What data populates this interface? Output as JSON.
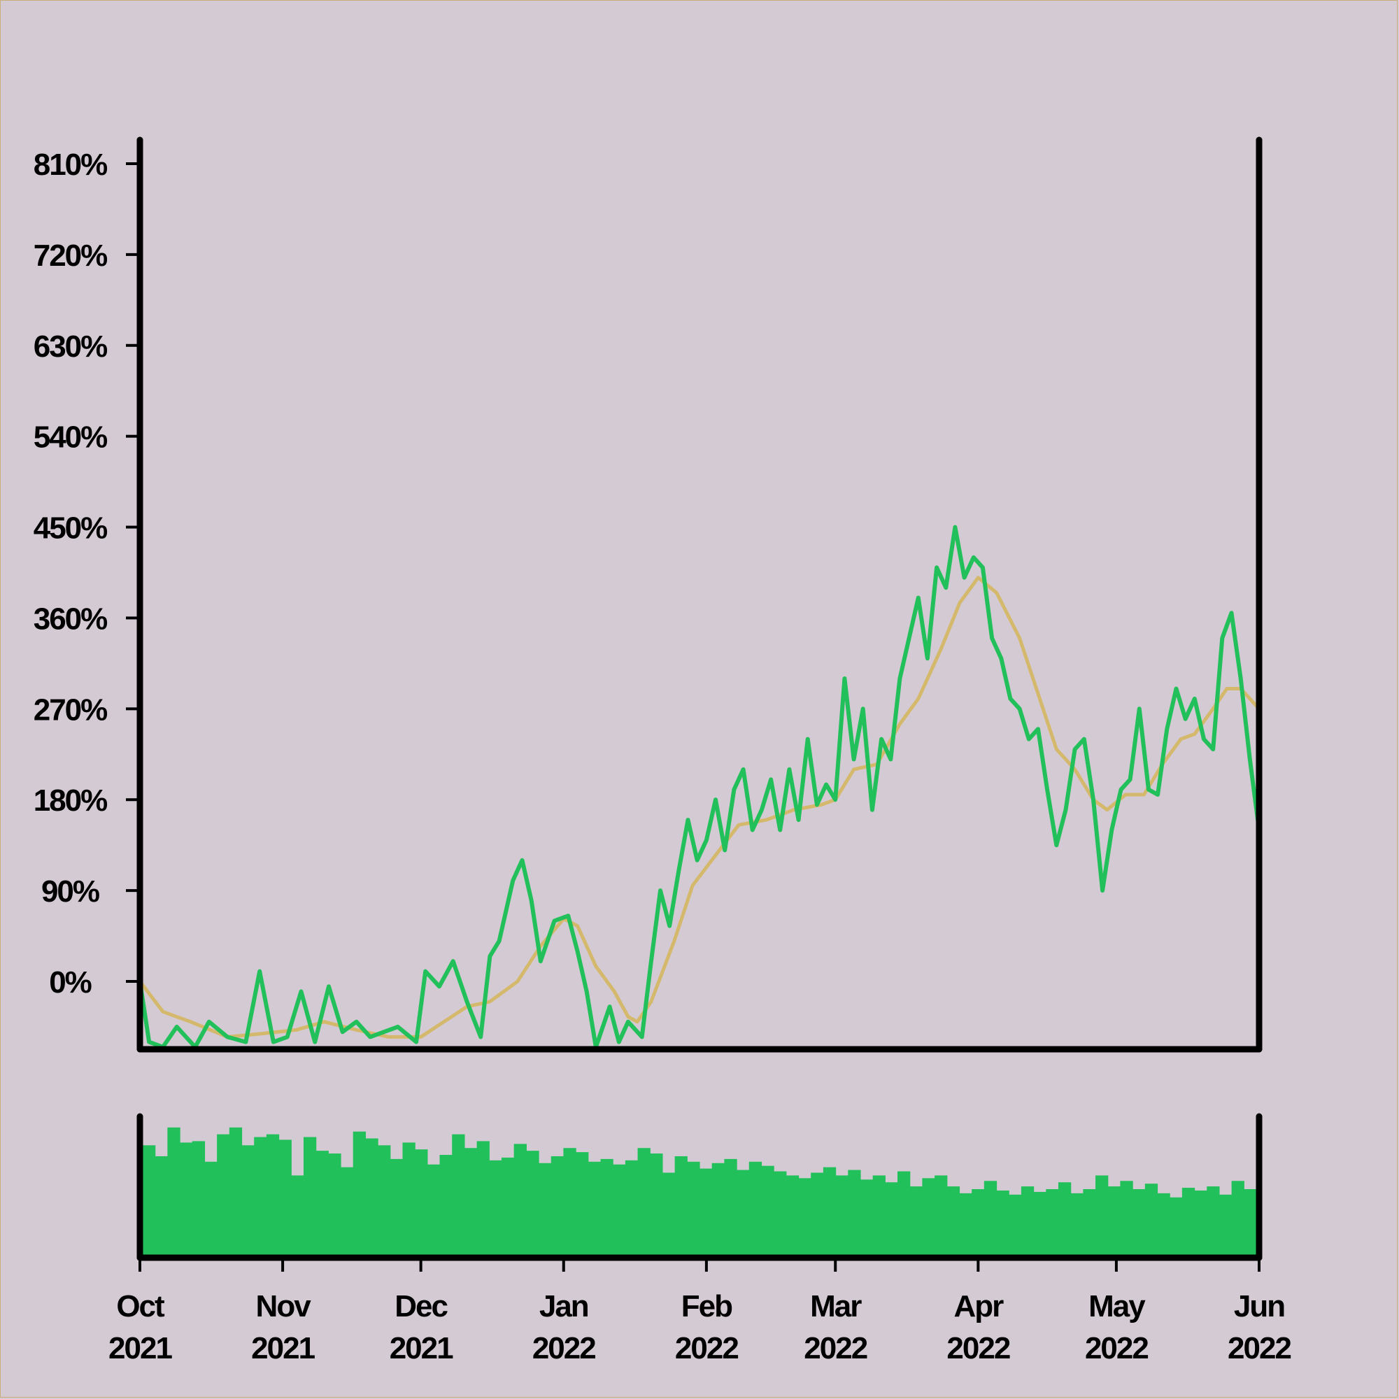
{
  "chart_data": [
    {
      "type": "line",
      "title": "",
      "xlabel": "",
      "ylabel": "",
      "y_unit": "%",
      "yticks": [
        0,
        90,
        180,
        270,
        360,
        450,
        540,
        630,
        720,
        810
      ],
      "ytick_labels": [
        "0%",
        "90%",
        "180%",
        "270%",
        "360%",
        "450%",
        "540%",
        "630%",
        "720%",
        "810%"
      ],
      "ylim": [
        -65,
        810
      ],
      "xlim": [
        "2021-10-01",
        "2022-06-01"
      ],
      "xtick_labels": [
        {
          "month": "Oct",
          "year": "2021"
        },
        {
          "month": "Nov",
          "year": "2021"
        },
        {
          "month": "Dec",
          "year": "2021"
        },
        {
          "month": "Jan",
          "year": "2022"
        },
        {
          "month": "Feb",
          "year": "2022"
        },
        {
          "month": "Mar",
          "year": "2022"
        },
        {
          "month": "Apr",
          "year": "2022"
        },
        {
          "month": "May",
          "year": "2022"
        },
        {
          "month": "Jun",
          "year": "2022"
        }
      ],
      "grid": false,
      "legend": "none",
      "series": [
        {
          "role": "price",
          "color": "#22c05a",
          "points": [
            [
              "2021-10-01",
              0
            ],
            [
              "2021-10-03",
              -60
            ],
            [
              "2021-10-06",
              -65
            ],
            [
              "2021-10-09",
              -45
            ],
            [
              "2021-10-13",
              -65
            ],
            [
              "2021-10-16",
              -40
            ],
            [
              "2021-10-20",
              -55
            ],
            [
              "2021-10-24",
              -60
            ],
            [
              "2021-10-27",
              10
            ],
            [
              "2021-10-30",
              -60
            ],
            [
              "2021-11-02",
              -55
            ],
            [
              "2021-11-05",
              -10
            ],
            [
              "2021-11-08",
              -60
            ],
            [
              "2021-11-11",
              -5
            ],
            [
              "2021-11-14",
              -50
            ],
            [
              "2021-11-17",
              -40
            ],
            [
              "2021-11-20",
              -55
            ],
            [
              "2021-11-23",
              -50
            ],
            [
              "2021-11-26",
              -45
            ],
            [
              "2021-11-30",
              -60
            ],
            [
              "2021-12-02",
              10
            ],
            [
              "2021-12-05",
              -5
            ],
            [
              "2021-12-08",
              20
            ],
            [
              "2021-12-11",
              -20
            ],
            [
              "2021-12-14",
              -55
            ],
            [
              "2021-12-16",
              25
            ],
            [
              "2021-12-18",
              40
            ],
            [
              "2021-12-21",
              100
            ],
            [
              "2021-12-23",
              120
            ],
            [
              "2021-12-25",
              80
            ],
            [
              "2021-12-27",
              20
            ],
            [
              "2021-12-30",
              60
            ],
            [
              "2022-01-02",
              65
            ],
            [
              "2022-01-04",
              30
            ],
            [
              "2022-01-06",
              -10
            ],
            [
              "2022-01-08",
              -65
            ],
            [
              "2022-01-11",
              -25
            ],
            [
              "2022-01-13",
              -60
            ],
            [
              "2022-01-15",
              -40
            ],
            [
              "2022-01-18",
              -55
            ],
            [
              "2022-01-20",
              20
            ],
            [
              "2022-01-22",
              90
            ],
            [
              "2022-01-24",
              55
            ],
            [
              "2022-01-26",
              110
            ],
            [
              "2022-01-28",
              160
            ],
            [
              "2022-01-30",
              120
            ],
            [
              "2022-02-01",
              140
            ],
            [
              "2022-02-03",
              180
            ],
            [
              "2022-02-05",
              130
            ],
            [
              "2022-02-07",
              190
            ],
            [
              "2022-02-09",
              210
            ],
            [
              "2022-02-11",
              150
            ],
            [
              "2022-02-13",
              170
            ],
            [
              "2022-02-15",
              200
            ],
            [
              "2022-02-17",
              150
            ],
            [
              "2022-02-19",
              210
            ],
            [
              "2022-02-21",
              160
            ],
            [
              "2022-02-23",
              240
            ],
            [
              "2022-02-25",
              175
            ],
            [
              "2022-02-27",
              195
            ],
            [
              "2022-03-01",
              180
            ],
            [
              "2022-03-03",
              300
            ],
            [
              "2022-03-05",
              220
            ],
            [
              "2022-03-07",
              270
            ],
            [
              "2022-03-09",
              170
            ],
            [
              "2022-03-11",
              240
            ],
            [
              "2022-03-13",
              220
            ],
            [
              "2022-03-15",
              300
            ],
            [
              "2022-03-17",
              340
            ],
            [
              "2022-03-19",
              380
            ],
            [
              "2022-03-21",
              320
            ],
            [
              "2022-03-23",
              410
            ],
            [
              "2022-03-25",
              390
            ],
            [
              "2022-03-27",
              450
            ],
            [
              "2022-03-29",
              400
            ],
            [
              "2022-03-31",
              420
            ],
            [
              "2022-04-02",
              410
            ],
            [
              "2022-04-04",
              340
            ],
            [
              "2022-04-06",
              320
            ],
            [
              "2022-04-08",
              280
            ],
            [
              "2022-04-10",
              270
            ],
            [
              "2022-04-12",
              240
            ],
            [
              "2022-04-14",
              250
            ],
            [
              "2022-04-16",
              190
            ],
            [
              "2022-04-18",
              135
            ],
            [
              "2022-04-20",
              170
            ],
            [
              "2022-04-22",
              230
            ],
            [
              "2022-04-24",
              240
            ],
            [
              "2022-04-26",
              180
            ],
            [
              "2022-04-28",
              90
            ],
            [
              "2022-04-30",
              150
            ],
            [
              "2022-05-02",
              190
            ],
            [
              "2022-05-04",
              200
            ],
            [
              "2022-05-06",
              270
            ],
            [
              "2022-05-08",
              190
            ],
            [
              "2022-05-10",
              185
            ],
            [
              "2022-05-12",
              250
            ],
            [
              "2022-05-14",
              290
            ],
            [
              "2022-05-16",
              260
            ],
            [
              "2022-05-18",
              280
            ],
            [
              "2022-05-20",
              240
            ],
            [
              "2022-05-22",
              230
            ],
            [
              "2022-05-24",
              340
            ],
            [
              "2022-05-26",
              365
            ],
            [
              "2022-05-28",
              300
            ],
            [
              "2022-05-30",
              220
            ],
            [
              "2022-06-01",
              150
            ]
          ]
        },
        {
          "role": "moving-average",
          "color": "#d4b96c",
          "points": [
            [
              "2021-10-01",
              0
            ],
            [
              "2021-10-06",
              -30
            ],
            [
              "2021-10-12",
              -40
            ],
            [
              "2021-10-20",
              -55
            ],
            [
              "2021-10-27",
              -52
            ],
            [
              "2021-11-04",
              -48
            ],
            [
              "2021-11-10",
              -40
            ],
            [
              "2021-11-17",
              -48
            ],
            [
              "2021-11-24",
              -55
            ],
            [
              "2021-12-01",
              -55
            ],
            [
              "2021-12-06",
              -40
            ],
            [
              "2021-12-11",
              -25
            ],
            [
              "2021-12-16",
              -20
            ],
            [
              "2021-12-22",
              0
            ],
            [
              "2021-12-27",
              35
            ],
            [
              "2022-01-01",
              62
            ],
            [
              "2022-01-04",
              55
            ],
            [
              "2022-01-08",
              15
            ],
            [
              "2022-01-12",
              -10
            ],
            [
              "2022-01-15",
              -35
            ],
            [
              "2022-01-17",
              -40
            ],
            [
              "2022-01-20",
              -20
            ],
            [
              "2022-01-25",
              40
            ],
            [
              "2022-01-29",
              95
            ],
            [
              "2022-02-03",
              125
            ],
            [
              "2022-02-08",
              155
            ],
            [
              "2022-02-14",
              160
            ],
            [
              "2022-02-20",
              170
            ],
            [
              "2022-02-26",
              175
            ],
            [
              "2022-03-01",
              180
            ],
            [
              "2022-03-05",
              210
            ],
            [
              "2022-03-10",
              215
            ],
            [
              "2022-03-15",
              255
            ],
            [
              "2022-03-19",
              280
            ],
            [
              "2022-03-24",
              330
            ],
            [
              "2022-03-28",
              375
            ],
            [
              "2022-04-01",
              400
            ],
            [
              "2022-04-05",
              385
            ],
            [
              "2022-04-10",
              340
            ],
            [
              "2022-04-14",
              285
            ],
            [
              "2022-04-18",
              230
            ],
            [
              "2022-04-22",
              210
            ],
            [
              "2022-04-26",
              180
            ],
            [
              "2022-04-29",
              170
            ],
            [
              "2022-05-03",
              185
            ],
            [
              "2022-05-07",
              185
            ],
            [
              "2022-05-11",
              215
            ],
            [
              "2022-05-15",
              240
            ],
            [
              "2022-05-18",
              245
            ],
            [
              "2022-05-22",
              270
            ],
            [
              "2022-05-25",
              290
            ],
            [
              "2022-05-28",
              290
            ],
            [
              "2022-06-01",
              270
            ]
          ]
        }
      ]
    },
    {
      "type": "bar",
      "role": "volume",
      "color": "#22c05a",
      "xlim": [
        "2021-10-01",
        "2022-06-01"
      ],
      "ylim": [
        0,
        1
      ],
      "values_relative": [
        0.82,
        0.74,
        0.95,
        0.84,
        0.85,
        0.7,
        0.9,
        0.95,
        0.82,
        0.88,
        0.9,
        0.86,
        0.6,
        0.88,
        0.78,
        0.76,
        0.66,
        0.92,
        0.87,
        0.82,
        0.72,
        0.84,
        0.79,
        0.68,
        0.75,
        0.9,
        0.8,
        0.85,
        0.71,
        0.73,
        0.83,
        0.78,
        0.69,
        0.74,
        0.8,
        0.77,
        0.7,
        0.72,
        0.68,
        0.71,
        0.8,
        0.76,
        0.62,
        0.74,
        0.7,
        0.65,
        0.69,
        0.72,
        0.64,
        0.7,
        0.67,
        0.63,
        0.6,
        0.58,
        0.62,
        0.66,
        0.6,
        0.64,
        0.57,
        0.6,
        0.55,
        0.63,
        0.52,
        0.58,
        0.6,
        0.52,
        0.47,
        0.5,
        0.56,
        0.49,
        0.46,
        0.52,
        0.48,
        0.5,
        0.55,
        0.47,
        0.5,
        0.6,
        0.52,
        0.56,
        0.5,
        0.54,
        0.47,
        0.44,
        0.51,
        0.49,
        0.52,
        0.46,
        0.56,
        0.5
      ]
    }
  ]
}
